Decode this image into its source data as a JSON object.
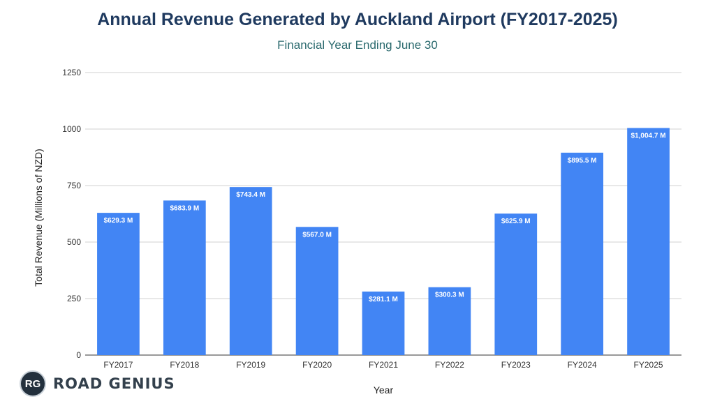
{
  "chart_data": {
    "type": "bar",
    "title": "Annual Revenue Generated by Auckland Airport (FY2017-2025)",
    "subtitle": "Financial Year Ending June 30",
    "xlabel": "Year",
    "ylabel": "Total Revenue (Millions of NZD)",
    "ylim": [
      0,
      1250
    ],
    "yticks": [
      0,
      250,
      500,
      750,
      1000,
      1250
    ],
    "grid": true,
    "categories": [
      "FY2017",
      "FY2018",
      "FY2019",
      "FY2020",
      "FY2021",
      "FY2022",
      "FY2023",
      "FY2024",
      "FY2025"
    ],
    "values": [
      629.3,
      683.9,
      743.4,
      567.0,
      281.1,
      300.3,
      625.9,
      895.5,
      1004.7
    ],
    "data_labels": [
      "$629.3 M",
      "$683.9 M",
      "$743.4 M",
      "$567.0 M",
      "$281.1 M",
      "$300.3 M",
      "$625.9 M",
      "$895.5 M",
      "$1,004.7 M"
    ],
    "bar_color": "#4285f4"
  },
  "logo": {
    "badge": "RG",
    "text": "ROAD GENIUS"
  }
}
